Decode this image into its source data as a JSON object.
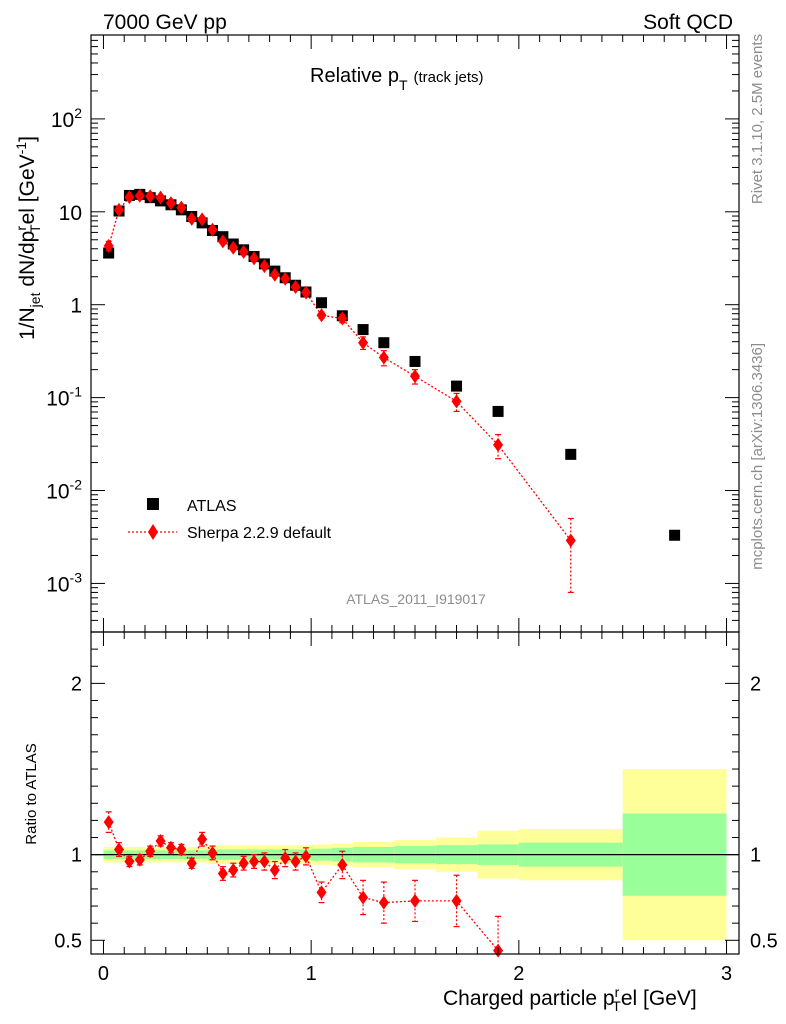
{
  "header": {
    "left": "7000 GeV pp",
    "right": "Soft QCD"
  },
  "side": {
    "rivet": "Rivet 3.1.10,  2.5M events",
    "mcplots": "mcplots.cern.ch [arXiv:1306.3436]"
  },
  "chart_data": [
    {
      "type": "scatter",
      "panel": "main",
      "title": "Relative p_T (track jets)",
      "title_main": "Relative p",
      "title_sub": "T",
      "title_note": "(track jets)",
      "analysis_tag": "ATLAS_2011_I919017",
      "ylabel": "1/N_jet dN/dp_T^r el [GeV^-1]",
      "ylabel_parts": {
        "a": "1/N",
        "b": "jet",
        "c": " dN/dp",
        "d": "r",
        "e": "T",
        "f": "el [GeV",
        "g": "-1",
        "h": "]"
      },
      "yscale": "log",
      "xlim": [
        -0.06,
        3.06
      ],
      "ylim": [
        0.0003,
        800
      ],
      "grid": false,
      "legend_position": "bottom-left",
      "y_tick_labels": [
        {
          "value": 0.001,
          "base": "10",
          "exp": "-3"
        },
        {
          "value": 0.01,
          "base": "10",
          "exp": "-2"
        },
        {
          "value": 0.1,
          "base": "10",
          "exp": "-1"
        },
        {
          "value": 1,
          "base": "1",
          "exp": ""
        },
        {
          "value": 10,
          "base": "10",
          "exp": ""
        },
        {
          "value": 100,
          "base": "10",
          "exp": "2"
        }
      ],
      "series": [
        {
          "name": "ATLAS",
          "marker": "square",
          "color": "#000000",
          "x": [
            0.025,
            0.075,
            0.125,
            0.175,
            0.225,
            0.275,
            0.325,
            0.375,
            0.425,
            0.475,
            0.525,
            0.575,
            0.625,
            0.675,
            0.725,
            0.775,
            0.825,
            0.875,
            0.925,
            0.975,
            1.05,
            1.15,
            1.25,
            1.35,
            1.5,
            1.7,
            1.9,
            2.25,
            2.75
          ],
          "y": [
            3.6,
            10.2,
            15.0,
            15.4,
            14.2,
            13.1,
            11.9,
            10.5,
            8.9,
            7.6,
            6.3,
            5.4,
            4.5,
            3.9,
            3.3,
            2.75,
            2.3,
            1.95,
            1.62,
            1.37,
            1.05,
            0.76,
            0.54,
            0.39,
            0.245,
            0.133,
            0.071,
            0.0245,
            0.0033
          ]
        },
        {
          "name": "Sherpa 2.2.9 default",
          "marker": "diamond",
          "line": "dotted",
          "color": "#ff0000",
          "x": [
            0.025,
            0.075,
            0.125,
            0.175,
            0.225,
            0.275,
            0.325,
            0.375,
            0.425,
            0.475,
            0.525,
            0.575,
            0.625,
            0.675,
            0.725,
            0.775,
            0.825,
            0.875,
            0.925,
            0.975,
            1.05,
            1.15,
            1.25,
            1.35,
            1.5,
            1.7,
            1.9,
            2.25
          ],
          "y": [
            4.3,
            10.5,
            14.4,
            14.9,
            14.7,
            14.2,
            12.4,
            11.1,
            8.4,
            8.3,
            6.4,
            4.8,
            4.1,
            3.7,
            3.15,
            2.6,
            2.1,
            1.9,
            1.55,
            1.35,
            0.77,
            0.71,
            0.39,
            0.27,
            0.17,
            0.091,
            0.031,
            0.0029
          ],
          "err": [
            0.5,
            0.7,
            0.5,
            0.5,
            0.4,
            0.4,
            0.4,
            0.35,
            0.3,
            0.3,
            0.25,
            0.2,
            0.2,
            0.15,
            0.15,
            0.12,
            0.1,
            0.1,
            0.08,
            0.08,
            0.06,
            0.07,
            0.06,
            0.05,
            0.03,
            0.02,
            0.009,
            0.0021
          ]
        }
      ]
    },
    {
      "type": "scatter",
      "panel": "ratio",
      "ylabel": "Ratio to ATLAS",
      "xlabel": "Charged particle p_T^r el [GeV]",
      "xlabel_parts": {
        "a": "Charged particle p",
        "b": "r",
        "c": "T",
        "d": "el [GeV]"
      },
      "xlim": [
        -0.06,
        3.06
      ],
      "ylim": [
        0.42,
        2.3
      ],
      "x_ticks": [
        0,
        1,
        2,
        3
      ],
      "x_tick_labels": [
        "0",
        "1",
        "2",
        "3"
      ],
      "y_ticks": [
        0.5,
        1,
        2
      ],
      "y_tick_labels": [
        "0.5",
        "1",
        "2"
      ],
      "reference_line": 1,
      "bands": {
        "bins": [
          [
            0.0,
            0.5
          ],
          [
            0.5,
            1.0
          ],
          [
            1.0,
            1.1
          ],
          [
            1.1,
            1.2
          ],
          [
            1.2,
            1.4
          ],
          [
            1.4,
            1.6
          ],
          [
            1.6,
            1.8
          ],
          [
            1.8,
            2.0
          ],
          [
            2.0,
            2.5
          ],
          [
            2.5,
            3.0
          ]
        ],
        "inner_halfwidth": [
          0.025,
          0.03,
          0.035,
          0.04,
          0.045,
          0.05,
          0.055,
          0.06,
          0.07,
          0.24
        ],
        "outer_halfwidth": [
          0.045,
          0.055,
          0.06,
          0.065,
          0.075,
          0.085,
          0.1,
          0.14,
          0.15,
          0.5
        ],
        "inner_color": "#99ff99",
        "outer_color": "#ffff99"
      },
      "series": [
        {
          "name": "Sherpa 2.2.9 default",
          "color": "#ff0000",
          "x": [
            0.025,
            0.075,
            0.125,
            0.175,
            0.225,
            0.275,
            0.325,
            0.375,
            0.425,
            0.475,
            0.525,
            0.575,
            0.625,
            0.675,
            0.725,
            0.775,
            0.825,
            0.875,
            0.925,
            0.975,
            1.05,
            1.15,
            1.25,
            1.35,
            1.5,
            1.7,
            1.9
          ],
          "y": [
            1.19,
            1.03,
            0.96,
            0.97,
            1.02,
            1.08,
            1.04,
            1.03,
            0.95,
            1.09,
            1.01,
            0.89,
            0.91,
            0.95,
            0.96,
            0.96,
            0.91,
            0.98,
            0.96,
            0.99,
            0.78,
            0.94,
            0.75,
            0.72,
            0.73,
            0.73,
            0.44
          ],
          "err": [
            0.06,
            0.04,
            0.03,
            0.03,
            0.03,
            0.03,
            0.03,
            0.03,
            0.03,
            0.04,
            0.04,
            0.04,
            0.04,
            0.04,
            0.04,
            0.05,
            0.05,
            0.05,
            0.05,
            0.05,
            0.06,
            0.08,
            0.1,
            0.12,
            0.12,
            0.15,
            0.2
          ]
        }
      ]
    }
  ]
}
